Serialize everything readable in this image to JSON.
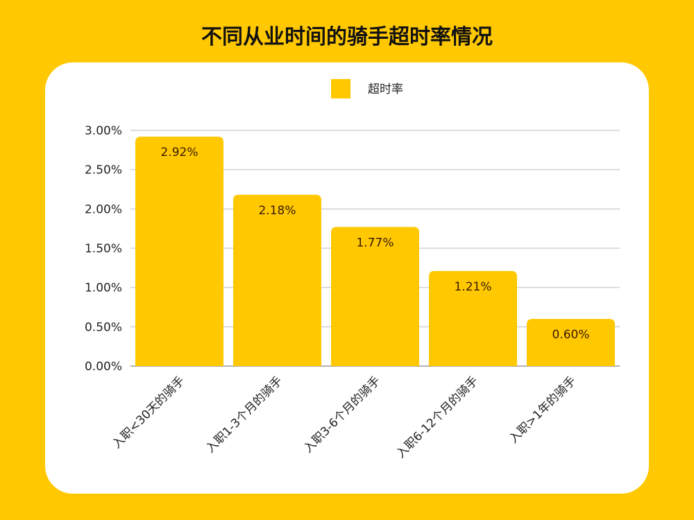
{
  "chart_data": {
    "type": "bar",
    "title": "不同从业时间的骑手超时率情况",
    "categories": [
      "入职<30天的骑手",
      "入职1-3个月的骑手",
      "入职3-6个月的骑手",
      "入职6-12个月的骑手",
      "入职>1年的骑手"
    ],
    "series": [
      {
        "name": "超时率",
        "values": [
          2.92,
          2.18,
          1.77,
          1.21,
          0.6
        ]
      }
    ],
    "data_labels": [
      "2.92%",
      "2.18%",
      "1.77%",
      "1.21%",
      "0.60%"
    ],
    "yticks": [
      "0.00%",
      "0.50%",
      "1.00%",
      "1.50%",
      "2.00%",
      "2.50%",
      "3.00%"
    ],
    "ylim": [
      0,
      3
    ],
    "grid": true,
    "legend": "top",
    "colors": {
      "bar": "#FFC800",
      "label": "#3a1a00",
      "background": "#FFC800"
    }
  }
}
